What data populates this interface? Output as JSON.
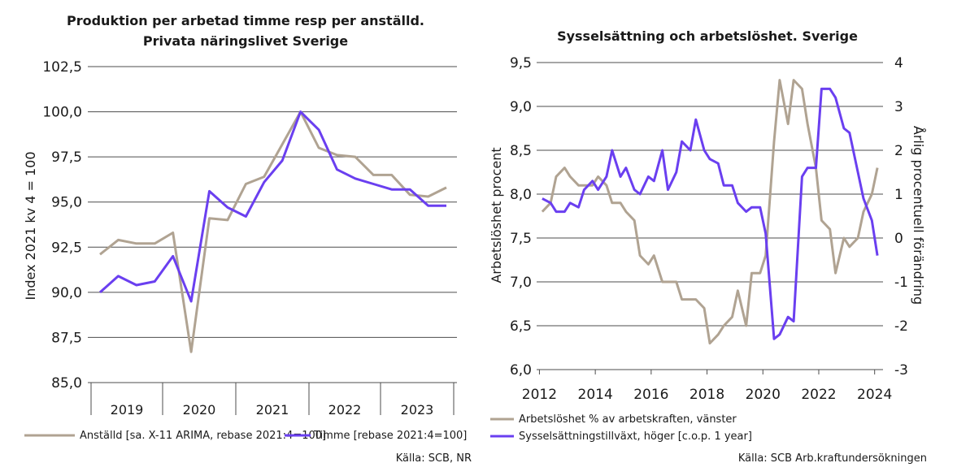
{
  "colors": {
    "beige": "#b0a392",
    "purple": "#6a3ff0"
  },
  "chart_data": [
    {
      "type": "line",
      "title": "Produktion per arbetad timme resp per anställd.",
      "subtitle": "Privata näringslivet Sverige",
      "ylabel": "Index 2021 kv 4 = 100",
      "ylim": [
        85,
        102.5
      ],
      "yticks": [
        "85,0",
        "87,5",
        "90,0",
        "92,5",
        "95,0",
        "97,5",
        "100,0",
        "102,5"
      ],
      "ytick_values": [
        85,
        87.5,
        90,
        92.5,
        95,
        97.5,
        100,
        102.5
      ],
      "xticks": [
        "2019",
        "2020",
        "2021",
        "2022",
        "2023"
      ],
      "x": [
        0,
        1,
        2,
        3,
        4,
        5,
        6,
        7,
        8,
        9,
        10,
        11,
        12,
        13,
        14,
        15,
        16,
        17,
        18,
        19
      ],
      "series": [
        {
          "name": "Anställd [sa. X-11 ARIMA, rebase 2021:4=100]",
          "color": "#b0a392",
          "values": [
            92.1,
            92.9,
            92.7,
            92.7,
            93.3,
            86.7,
            94.1,
            94.0,
            96.0,
            96.4,
            98.2,
            100.0,
            98.0,
            97.6,
            97.5,
            96.5,
            96.5,
            95.4,
            95.3,
            95.8
          ]
        },
        {
          "name": "Timme [rebase 2021:4=100]",
          "color": "#6a3ff0",
          "values": [
            90.0,
            90.9,
            90.4,
            90.6,
            92.0,
            89.5,
            95.6,
            94.7,
            94.2,
            96.1,
            97.3,
            100.0,
            99.0,
            96.8,
            96.3,
            96.0,
            95.7,
            95.7,
            94.8,
            94.8
          ]
        }
      ],
      "source": "Källa: SCB, NR"
    },
    {
      "type": "line",
      "title": "Sysselsättning och arbetslöshet. Sverige",
      "ylabel_left": "Arbetslöshet procent",
      "ylabel_right": "Årlig procentuell förändring",
      "ylim_left": [
        6.0,
        9.5
      ],
      "ylim_right": [
        -3,
        4
      ],
      "yticks_left": [
        "6,0",
        "6,5",
        "7,0",
        "7,5",
        "8,0",
        "8,5",
        "9,0",
        "9,5"
      ],
      "ytick_values_left": [
        6.0,
        6.5,
        7.0,
        7.5,
        8.0,
        8.5,
        9.0,
        9.5
      ],
      "yticks_right": [
        "-3",
        "-2",
        "-1",
        "0",
        "1",
        "2",
        "3",
        "4"
      ],
      "ytick_values_right": [
        -3,
        -2,
        -1,
        0,
        1,
        2,
        3,
        4
      ],
      "xticks": [
        "2012",
        "2014",
        "2016",
        "2018",
        "2020",
        "2022",
        "2024"
      ],
      "xtick_values": [
        2012,
        2014,
        2016,
        2018,
        2020,
        2022,
        2024
      ],
      "xlim": [
        2011.9,
        2024.3
      ],
      "series": [
        {
          "name": "Arbetslöshet % av arbetskraften, vänster",
          "color": "#b0a392",
          "axis": "left",
          "x": [
            2012.1,
            2012.4,
            2012.6,
            2012.9,
            2013.1,
            2013.4,
            2013.6,
            2013.9,
            2014.1,
            2014.4,
            2014.6,
            2014.9,
            2015.1,
            2015.4,
            2015.6,
            2015.9,
            2016.1,
            2016.4,
            2016.6,
            2016.9,
            2017.1,
            2017.4,
            2017.6,
            2017.9,
            2018.1,
            2018.4,
            2018.6,
            2018.9,
            2019.1,
            2019.4,
            2019.6,
            2019.9,
            2020.1,
            2020.4,
            2020.6,
            2020.9,
            2021.1,
            2021.4,
            2021.6,
            2021.9,
            2022.1,
            2022.4,
            2022.6,
            2022.9,
            2023.1,
            2023.4,
            2023.6,
            2023.9,
            2024.1
          ],
          "values": [
            7.8,
            7.9,
            8.2,
            8.3,
            8.2,
            8.1,
            8.1,
            8.1,
            8.2,
            8.1,
            7.9,
            7.9,
            7.8,
            7.7,
            7.3,
            7.2,
            7.3,
            7.0,
            7.0,
            7.0,
            6.8,
            6.8,
            6.8,
            6.7,
            6.3,
            6.4,
            6.5,
            6.6,
            6.9,
            6.5,
            7.1,
            7.1,
            7.3,
            8.6,
            9.3,
            8.8,
            9.3,
            9.2,
            8.8,
            8.3,
            7.7,
            7.6,
            7.1,
            7.5,
            7.4,
            7.5,
            7.8,
            8.0,
            8.3
          ]
        },
        {
          "name": "Sysselsättningstillväxt, höger [c.o.p. 1 year]",
          "color": "#6a3ff0",
          "axis": "right",
          "x": [
            2012.1,
            2012.4,
            2012.6,
            2012.9,
            2013.1,
            2013.4,
            2013.6,
            2013.9,
            2014.1,
            2014.4,
            2014.6,
            2014.9,
            2015.1,
            2015.4,
            2015.6,
            2015.9,
            2016.1,
            2016.4,
            2016.6,
            2016.9,
            2017.1,
            2017.4,
            2017.6,
            2017.9,
            2018.1,
            2018.4,
            2018.6,
            2018.9,
            2019.1,
            2019.4,
            2019.6,
            2019.9,
            2020.1,
            2020.4,
            2020.6,
            2020.9,
            2021.1,
            2021.4,
            2021.6,
            2021.9,
            2022.1,
            2022.4,
            2022.6,
            2022.9,
            2023.1,
            2023.4,
            2023.6,
            2023.9,
            2024.1
          ],
          "values": [
            0.9,
            0.8,
            0.6,
            0.6,
            0.8,
            0.7,
            1.1,
            1.3,
            1.1,
            1.4,
            2.0,
            1.4,
            1.6,
            1.1,
            1.0,
            1.4,
            1.3,
            2.0,
            1.1,
            1.5,
            2.2,
            2.0,
            2.7,
            2.0,
            1.8,
            1.7,
            1.2,
            1.2,
            0.8,
            0.6,
            0.7,
            0.7,
            0.1,
            -2.3,
            -2.2,
            -1.8,
            -1.9,
            1.4,
            1.6,
            1.6,
            3.4,
            3.4,
            3.2,
            2.5,
            2.4,
            1.5,
            0.9,
            0.4,
            -0.4
          ]
        }
      ],
      "source": "Källa: SCB Arb.kraftundersökningen"
    }
  ]
}
